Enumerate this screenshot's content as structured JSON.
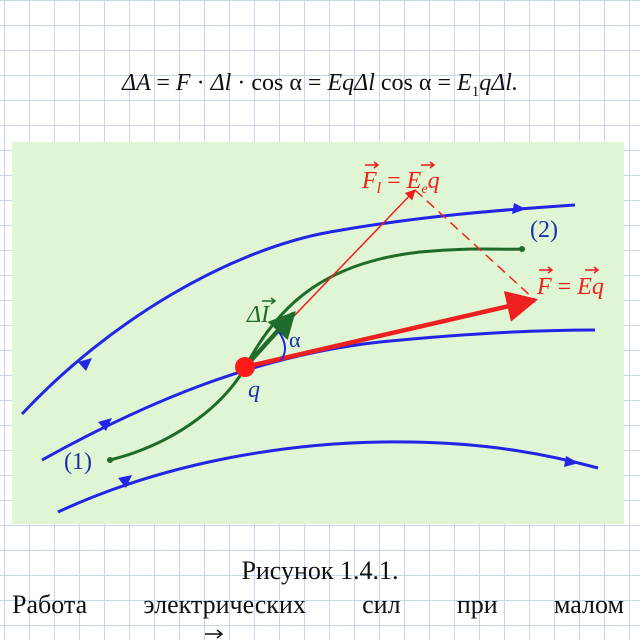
{
  "formula": {
    "delta_a": "ΔA",
    "eq": "=",
    "f": "F",
    "dot": "·",
    "dl": "Δl",
    "cos": "cos",
    "alpha": "α",
    "eqdl": "EqΔl",
    "e": "E",
    "sub1": "1",
    "qdl": "qΔl."
  },
  "diagram": {
    "label_point1": "(1)",
    "label_point2": "(2)",
    "label_charge": "q",
    "label_alpha": "α",
    "label_dl": "ΔI",
    "label_fl_left": "F",
    "label_fl_sub": "l",
    "label_fl_eq": "=",
    "label_fl_e": "E",
    "label_fl_esub": "e",
    "label_fl_q": "q",
    "label_f_left": "F",
    "label_f_eq": "=",
    "label_f_right": "Eq",
    "colors": {
      "field_lines": "#2424e6",
      "trajectory": "#1f6b2a",
      "force": "#ee1f1f",
      "charge": "#ff1a1a",
      "background": "#dff5d4"
    }
  },
  "caption": "Рисунок 1.4.1.",
  "description_words": [
    "Работа",
    "электрических",
    "сил",
    "при",
    "малом"
  ]
}
